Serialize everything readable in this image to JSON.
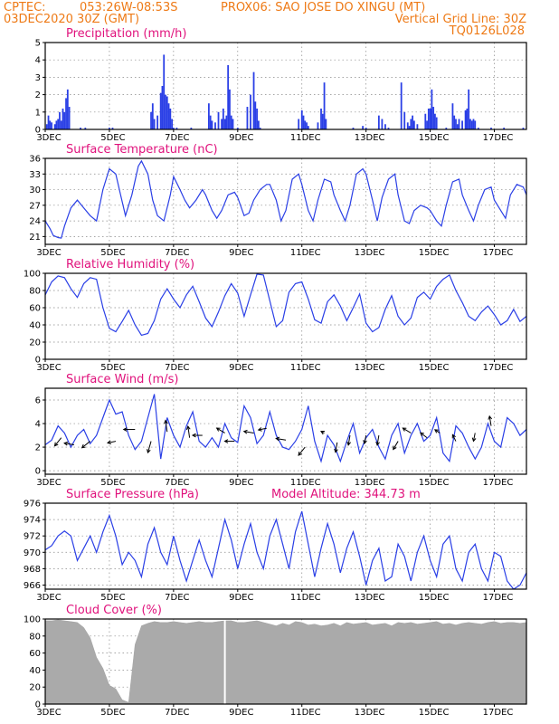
{
  "header": {
    "line1_left": "CPTEC:",
    "coords": "053:26W-08:53S",
    "station": "PROX06: SAO JOSE DO XINGU (MT)",
    "date": "03DEC2020 30Z (GMT)",
    "grid_note": "Vertical Grid Line: 30Z",
    "code": "TQ0126L028"
  },
  "model_altitude": "Model Altitude: 344.73 m",
  "x_axis": {
    "ticks": [
      "3DEC",
      "5DEC",
      "7DEC",
      "9DEC",
      "11DEC",
      "13DEC",
      "15DEC",
      "17DEC"
    ],
    "day_range": [
      3,
      18
    ]
  },
  "colors": {
    "series": "#2a3fe6",
    "cloud": "#aaaaaa",
    "title": "#e0127c",
    "header": "#ee7a16",
    "wind_arrow": "#000000"
  },
  "chart_data": [
    {
      "type": "bar",
      "title": "Precipitation (mm/h)",
      "ylim": [
        0,
        5
      ],
      "yticks": [
        0,
        1,
        2,
        3,
        4,
        5
      ],
      "x": [
        3.05,
        3.1,
        3.15,
        3.2,
        3.3,
        3.35,
        3.4,
        3.45,
        3.5,
        3.55,
        3.6,
        3.65,
        3.7,
        3.75,
        4.1,
        4.25,
        5.0,
        5.1,
        6.3,
        6.35,
        6.4,
        6.5,
        6.6,
        6.65,
        6.7,
        6.75,
        6.8,
        6.85,
        6.9,
        6.95,
        7.0,
        7.1,
        7.55,
        8.1,
        8.15,
        8.2,
        8.3,
        8.4,
        8.5,
        8.55,
        8.6,
        8.65,
        8.7,
        8.75,
        8.8,
        8.85,
        9.0,
        9.3,
        9.4,
        9.5,
        9.55,
        9.6,
        9.65,
        9.7,
        10.9,
        11.0,
        11.05,
        11.1,
        11.15,
        11.2,
        11.5,
        11.6,
        11.65,
        11.7,
        11.75,
        12.6,
        12.9,
        13.0,
        13.4,
        13.5,
        13.6,
        13.7,
        14.1,
        14.2,
        14.3,
        14.35,
        14.4,
        14.45,
        14.5,
        14.6,
        14.85,
        14.9,
        14.95,
        15.0,
        15.05,
        15.1,
        15.15,
        15.2,
        15.5,
        15.7,
        15.75,
        15.8,
        15.85,
        15.9,
        16.0,
        16.1,
        16.15,
        16.2,
        16.25,
        16.3,
        16.35,
        16.4,
        16.5,
        16.9,
        17.3,
        17.9
      ],
      "values": [
        0.3,
        0.8,
        0.5,
        0.4,
        0.3,
        0.5,
        0.6,
        1.0,
        0.5,
        1.2,
        1.0,
        1.8,
        2.3,
        1.3,
        0.1,
        0.1,
        0.1,
        0.1,
        1.0,
        1.5,
        0.6,
        0.8,
        2.1,
        2.5,
        4.3,
        2.0,
        1.9,
        1.5,
        1.2,
        0.6,
        0.1,
        0.1,
        0.1,
        1.5,
        0.8,
        0.5,
        0.4,
        1.0,
        0.6,
        1.2,
        0.6,
        0.8,
        3.7,
        2.3,
        0.8,
        0.6,
        0.1,
        1.3,
        2.0,
        3.3,
        1.6,
        1.2,
        0.5,
        0.1,
        0.6,
        1.1,
        0.8,
        0.5,
        0.4,
        0.2,
        0.4,
        1.2,
        0.9,
        2.7,
        0.6,
        0.1,
        0.2,
        0.1,
        0.8,
        0.6,
        0.3,
        0.1,
        2.7,
        1.0,
        0.4,
        0.2,
        0.6,
        0.8,
        0.5,
        0.3,
        0.9,
        0.5,
        1.2,
        1.2,
        2.3,
        1.3,
        0.9,
        0.7,
        0.1,
        1.5,
        0.8,
        0.6,
        0.3,
        0.6,
        0.5,
        1.1,
        1.2,
        2.3,
        0.6,
        0.5,
        0.6,
        0.5,
        0.1,
        0.1,
        0.1,
        0.1
      ]
    },
    {
      "type": "line",
      "title": "Surface Temperature (nC)",
      "ylim": [
        19.5,
        36
      ],
      "yticks": [
        21,
        24,
        27,
        30,
        33,
        36
      ],
      "x": [
        3.0,
        3.15,
        3.25,
        3.4,
        3.5,
        3.6,
        3.8,
        4.0,
        4.2,
        4.4,
        4.6,
        4.8,
        5.0,
        5.2,
        5.35,
        5.5,
        5.7,
        5.9,
        6.0,
        6.2,
        6.35,
        6.5,
        6.7,
        6.9,
        7.0,
        7.2,
        7.35,
        7.5,
        7.7,
        7.9,
        8.0,
        8.2,
        8.35,
        8.5,
        8.7,
        8.9,
        9.0,
        9.2,
        9.35,
        9.5,
        9.7,
        9.9,
        10.0,
        10.2,
        10.35,
        10.5,
        10.7,
        10.9,
        11.0,
        11.2,
        11.35,
        11.5,
        11.7,
        11.9,
        12.0,
        12.2,
        12.35,
        12.5,
        12.7,
        12.9,
        13.0,
        13.2,
        13.35,
        13.5,
        13.7,
        13.9,
        14.0,
        14.2,
        14.35,
        14.5,
        14.7,
        14.9,
        15.0,
        15.2,
        15.35,
        15.5,
        15.7,
        15.9,
        16.0,
        16.2,
        16.35,
        16.5,
        16.7,
        16.9,
        17.0,
        17.2,
        17.35,
        17.5,
        17.7,
        17.9,
        18.0
      ],
      "y": [
        24.0,
        22.5,
        21.2,
        20.8,
        20.7,
        23.0,
        26.5,
        28.0,
        26.5,
        25.0,
        24.0,
        30.0,
        34.0,
        33.0,
        29.0,
        25.0,
        29.0,
        34.5,
        35.5,
        33.0,
        28.0,
        25.0,
        24.0,
        29.0,
        32.5,
        30.0,
        28.0,
        26.5,
        28.0,
        30.0,
        29.0,
        26.0,
        24.5,
        26.0,
        29.0,
        29.5,
        28.5,
        25.0,
        25.5,
        28.0,
        30.0,
        31.0,
        31.0,
        28.0,
        24.0,
        26.0,
        32.0,
        33.0,
        31.0,
        26.0,
        24.0,
        28.0,
        32.0,
        31.5,
        29.0,
        26.0,
        24.0,
        27.0,
        33.0,
        34.0,
        33.0,
        28.0,
        24.0,
        28.5,
        32.0,
        33.0,
        29.0,
        24.0,
        23.5,
        26.0,
        27.0,
        26.5,
        26.0,
        24.0,
        23.0,
        27.0,
        31.5,
        32.0,
        29.0,
        26.0,
        24.0,
        27.0,
        30.0,
        30.5,
        28.0,
        26.0,
        24.5,
        29.0,
        31.0,
        30.5,
        29.0
      ]
    },
    {
      "type": "line",
      "title": "Relative Humidity (%)",
      "ylim": [
        0,
        100
      ],
      "yticks": [
        0,
        20,
        40,
        60,
        80,
        100
      ],
      "x": [
        3.0,
        3.2,
        3.4,
        3.6,
        3.8,
        4.0,
        4.2,
        4.4,
        4.6,
        4.8,
        5.0,
        5.2,
        5.4,
        5.6,
        5.8,
        6.0,
        6.2,
        6.4,
        6.6,
        6.8,
        7.0,
        7.2,
        7.4,
        7.6,
        7.8,
        8.0,
        8.2,
        8.4,
        8.6,
        8.8,
        9.0,
        9.2,
        9.4,
        9.6,
        9.8,
        10.0,
        10.2,
        10.4,
        10.6,
        10.8,
        11.0,
        11.2,
        11.4,
        11.6,
        11.8,
        12.0,
        12.2,
        12.4,
        12.6,
        12.8,
        13.0,
        13.2,
        13.4,
        13.6,
        13.8,
        14.0,
        14.2,
        14.4,
        14.6,
        14.8,
        15.0,
        15.2,
        15.4,
        15.6,
        15.8,
        16.0,
        16.2,
        16.4,
        16.6,
        16.8,
        17.0,
        17.2,
        17.4,
        17.6,
        17.8,
        18.0
      ],
      "y": [
        75,
        90,
        97,
        95,
        82,
        72,
        88,
        95,
        93,
        60,
        36,
        32,
        44,
        57,
        40,
        28,
        30,
        45,
        70,
        82,
        70,
        60,
        75,
        85,
        67,
        48,
        38,
        55,
        74,
        88,
        77,
        50,
        75,
        99,
        98,
        68,
        38,
        45,
        78,
        88,
        90,
        70,
        46,
        42,
        67,
        75,
        62,
        45,
        60,
        76,
        42,
        32,
        37,
        58,
        74,
        50,
        40,
        48,
        72,
        78,
        70,
        85,
        93,
        98,
        80,
        66,
        50,
        45,
        55,
        62,
        52,
        40,
        45,
        58,
        44,
        50
      ]
    },
    {
      "type": "line",
      "title": "Surface Wind (m/s)",
      "ylim": [
        -0.3,
        7
      ],
      "yticks": [
        0,
        2,
        4,
        6
      ],
      "x": [
        3.0,
        3.2,
        3.4,
        3.6,
        3.8,
        4.0,
        4.2,
        4.4,
        4.6,
        4.8,
        5.0,
        5.2,
        5.4,
        5.6,
        5.8,
        6.0,
        6.2,
        6.4,
        6.6,
        6.8,
        7.0,
        7.2,
        7.4,
        7.6,
        7.8,
        8.0,
        8.2,
        8.4,
        8.6,
        8.8,
        9.0,
        9.2,
        9.4,
        9.6,
        9.8,
        10.0,
        10.2,
        10.4,
        10.6,
        10.8,
        11.0,
        11.2,
        11.4,
        11.6,
        11.8,
        12.0,
        12.2,
        12.4,
        12.6,
        12.8,
        13.0,
        13.2,
        13.4,
        13.6,
        13.8,
        14.0,
        14.2,
        14.4,
        14.6,
        14.8,
        15.0,
        15.2,
        15.4,
        15.6,
        15.8,
        16.0,
        16.2,
        16.4,
        16.6,
        16.8,
        17.0,
        17.2,
        17.4,
        17.6,
        17.8,
        18.0
      ],
      "y": [
        2.2,
        2.6,
        3.8,
        3.2,
        2.0,
        3.0,
        3.5,
        2.3,
        3.0,
        4.5,
        6.0,
        4.8,
        5.0,
        3.0,
        1.8,
        2.5,
        4.5,
        6.5,
        1.0,
        4.5,
        3.0,
        2.0,
        3.8,
        5.0,
        2.5,
        2.0,
        2.8,
        2.0,
        4.0,
        2.8,
        2.4,
        5.5,
        4.5,
        2.3,
        3.0,
        5.0,
        3.0,
        2.0,
        1.8,
        2.5,
        3.5,
        5.5,
        2.5,
        0.8,
        3.0,
        2.2,
        0.8,
        2.5,
        4.0,
        1.5,
        2.8,
        3.5,
        2.0,
        1.0,
        3.0,
        4.0,
        1.5,
        3.0,
        4.0,
        2.5,
        3.0,
        4.5,
        1.5,
        0.8,
        3.8,
        3.2,
        2.0,
        1.0,
        2.0,
        4.0,
        2.5,
        2.0,
        4.5,
        4.0,
        3.0,
        3.5
      ],
      "wind_arrows": [
        {
          "x": 3.5,
          "y": 2.8,
          "u": -0.4,
          "v": -0.5
        },
        {
          "x": 3.9,
          "y": 2.2,
          "u": -0.6,
          "v": 0.1
        },
        {
          "x": 4.4,
          "y": 2.5,
          "u": -0.5,
          "v": -0.4
        },
        {
          "x": 5.2,
          "y": 2.5,
          "u": -0.5,
          "v": -0.1
        },
        {
          "x": 5.8,
          "y": 3.5,
          "u": -0.7,
          "v": 0.0
        },
        {
          "x": 6.3,
          "y": 2.5,
          "u": -0.2,
          "v": -0.7
        },
        {
          "x": 6.8,
          "y": 3.3,
          "u": -0.1,
          "v": 0.7
        },
        {
          "x": 7.5,
          "y": 2.8,
          "u": -0.1,
          "v": 0.7
        },
        {
          "x": 7.9,
          "y": 3.0,
          "u": -0.6,
          "v": 0.0
        },
        {
          "x": 8.6,
          "y": 3.2,
          "u": -0.5,
          "v": 0.3
        },
        {
          "x": 8.9,
          "y": 2.5,
          "u": -0.6,
          "v": 0.0
        },
        {
          "x": 9.5,
          "y": 3.2,
          "u": -0.6,
          "v": 0.1
        },
        {
          "x": 9.9,
          "y": 3.6,
          "u": -0.5,
          "v": -0.1
        },
        {
          "x": 10.5,
          "y": 2.6,
          "u": -0.6,
          "v": 0.1
        },
        {
          "x": 11.1,
          "y": 2.0,
          "u": -0.4,
          "v": -0.5
        },
        {
          "x": 11.7,
          "y": 3.2,
          "u": -0.2,
          "v": 0.1
        },
        {
          "x": 12.1,
          "y": 2.4,
          "u": -0.1,
          "v": -0.6
        },
        {
          "x": 12.5,
          "y": 3.0,
          "u": -0.1,
          "v": -0.6
        },
        {
          "x": 13.0,
          "y": 3.0,
          "u": -0.1,
          "v": -0.5
        },
        {
          "x": 13.4,
          "y": 3.0,
          "u": -0.1,
          "v": -0.6
        },
        {
          "x": 14.0,
          "y": 2.5,
          "u": -0.3,
          "v": -0.5
        },
        {
          "x": 14.4,
          "y": 3.2,
          "u": -0.5,
          "v": 0.3
        },
        {
          "x": 14.9,
          "y": 2.8,
          "u": -0.4,
          "v": 0.3
        },
        {
          "x": 15.3,
          "y": 3.2,
          "u": -0.3,
          "v": 0.2
        },
        {
          "x": 15.8,
          "y": 2.5,
          "u": -0.2,
          "v": 0.4
        },
        {
          "x": 16.4,
          "y": 3.2,
          "u": -0.1,
          "v": -0.5
        },
        {
          "x": 16.9,
          "y": 3.8,
          "u": -0.1,
          "v": 0.6
        }
      ]
    },
    {
      "type": "line",
      "title": "Surface Pressure (hPa)",
      "ylim": [
        965.5,
        976
      ],
      "yticks": [
        966,
        968,
        970,
        972,
        974,
        976
      ],
      "x": [
        3.0,
        3.2,
        3.4,
        3.6,
        3.8,
        4.0,
        4.2,
        4.4,
        4.6,
        4.8,
        5.0,
        5.2,
        5.4,
        5.6,
        5.8,
        6.0,
        6.2,
        6.4,
        6.6,
        6.8,
        7.0,
        7.2,
        7.4,
        7.6,
        7.8,
        8.0,
        8.2,
        8.4,
        8.6,
        8.8,
        9.0,
        9.2,
        9.4,
        9.6,
        9.8,
        10.0,
        10.2,
        10.4,
        10.6,
        10.8,
        11.0,
        11.2,
        11.4,
        11.6,
        11.8,
        12.0,
        12.2,
        12.4,
        12.6,
        12.8,
        13.0,
        13.2,
        13.4,
        13.6,
        13.8,
        14.0,
        14.2,
        14.4,
        14.6,
        14.8,
        15.0,
        15.2,
        15.4,
        15.6,
        15.8,
        16.0,
        16.2,
        16.4,
        16.6,
        16.8,
        17.0,
        17.2,
        17.4,
        17.6,
        17.8,
        18.0
      ],
      "y": [
        970.3,
        970.8,
        972.0,
        972.6,
        972.0,
        969.0,
        970.5,
        972.0,
        970.0,
        972.5,
        974.5,
        972.0,
        968.5,
        970.0,
        969.0,
        967.0,
        971.0,
        973.0,
        970.0,
        968.5,
        972.0,
        969.0,
        966.5,
        969.0,
        971.5,
        969.0,
        967.0,
        970.5,
        974.0,
        971.5,
        968.0,
        971.0,
        973.5,
        970.0,
        968.0,
        972.0,
        974.0,
        971.0,
        968.0,
        972.5,
        975.0,
        971.0,
        967.0,
        970.5,
        973.5,
        971.0,
        967.5,
        970.5,
        972.5,
        969.5,
        966.0,
        969.0,
        970.5,
        966.5,
        967.0,
        971.0,
        969.5,
        966.5,
        970.0,
        972.0,
        969.0,
        967.0,
        971.0,
        972.0,
        968.0,
        966.5,
        970.0,
        971.0,
        968.0,
        966.5,
        970.0,
        969.5,
        966.5,
        965.5,
        966.0,
        967.5
      ]
    },
    {
      "type": "area",
      "title": "Cloud Cover (%)",
      "ylim": [
        0,
        100
      ],
      "yticks": [
        0,
        20,
        40,
        60,
        80,
        100
      ],
      "x": [
        3.0,
        3.2,
        3.4,
        3.6,
        3.8,
        4.0,
        4.2,
        4.4,
        4.6,
        4.8,
        5.0,
        5.2,
        5.4,
        5.6,
        5.8,
        6.0,
        6.2,
        6.4,
        6.6,
        6.8,
        7.0,
        7.2,
        7.4,
        7.6,
        7.8,
        8.0,
        8.2,
        8.4,
        8.6,
        8.8,
        9.0,
        9.2,
        9.4,
        9.6,
        9.8,
        10.0,
        10.2,
        10.4,
        10.6,
        10.8,
        11.0,
        11.2,
        11.4,
        11.6,
        11.8,
        12.0,
        12.2,
        12.4,
        12.6,
        12.8,
        13.0,
        13.2,
        13.4,
        13.6,
        13.8,
        14.0,
        14.2,
        14.4,
        14.6,
        14.8,
        15.0,
        15.2,
        15.4,
        15.6,
        15.8,
        16.0,
        16.2,
        16.4,
        16.6,
        16.8,
        17.0,
        17.2,
        17.4,
        17.6,
        17.8,
        18.0
      ],
      "y": [
        98,
        98,
        99,
        98,
        97,
        96,
        90,
        78,
        55,
        42,
        22,
        18,
        5,
        2,
        70,
        92,
        95,
        97,
        96,
        96,
        97,
        96,
        95,
        96,
        97,
        96,
        96,
        97,
        98,
        98,
        96,
        96,
        97,
        98,
        96,
        94,
        92,
        95,
        93,
        97,
        96,
        93,
        94,
        92,
        93,
        95,
        92,
        96,
        94,
        95,
        96,
        93,
        94,
        95,
        92,
        96,
        95,
        96,
        94,
        95,
        96,
        97,
        94,
        95,
        93,
        95,
        96,
        95,
        94,
        96,
        97,
        95,
        96,
        96,
        95,
        96
      ],
      "gaps_x": [
        8.6
      ]
    }
  ]
}
